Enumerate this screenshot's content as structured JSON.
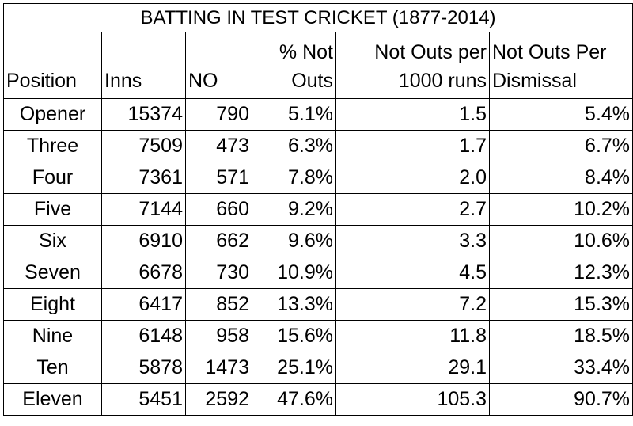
{
  "title": "BATTING IN TEST CRICKET (1877-2014)",
  "headers": {
    "position": "Position",
    "inns": "Inns",
    "no": "NO",
    "pct_not_outs_line1": "% Not",
    "pct_not_outs_line2": "Outs",
    "not_outs_per_1000_line1": "Not Outs per",
    "not_outs_per_1000_line2": "1000 runs",
    "not_outs_per_dismissal_line1": "Not Outs Per",
    "not_outs_per_dismissal_line2": "Dismissal"
  },
  "rows": [
    {
      "position": "Opener",
      "inns": "15374",
      "no": "790",
      "pct": "5.1%",
      "per1000": "1.5",
      "perdis": "5.4%"
    },
    {
      "position": "Three",
      "inns": "7509",
      "no": "473",
      "pct": "6.3%",
      "per1000": "1.7",
      "perdis": "6.7%"
    },
    {
      "position": "Four",
      "inns": "7361",
      "no": "571",
      "pct": "7.8%",
      "per1000": "2.0",
      "perdis": "8.4%"
    },
    {
      "position": "Five",
      "inns": "7144",
      "no": "660",
      "pct": "9.2%",
      "per1000": "2.7",
      "perdis": "10.2%"
    },
    {
      "position": "Six",
      "inns": "6910",
      "no": "662",
      "pct": "9.6%",
      "per1000": "3.3",
      "perdis": "10.6%"
    },
    {
      "position": "Seven",
      "inns": "6678",
      "no": "730",
      "pct": "10.9%",
      "per1000": "4.5",
      "perdis": "12.3%"
    },
    {
      "position": "Eight",
      "inns": "6417",
      "no": "852",
      "pct": "13.3%",
      "per1000": "7.2",
      "perdis": "15.3%"
    },
    {
      "position": "Nine",
      "inns": "6148",
      "no": "958",
      "pct": "15.6%",
      "per1000": "11.8",
      "perdis": "18.5%"
    },
    {
      "position": "Ten",
      "inns": "5878",
      "no": "1473",
      "pct": "25.1%",
      "per1000": "29.1",
      "perdis": "33.4%"
    },
    {
      "position": "Eleven",
      "inns": "5451",
      "no": "2592",
      "pct": "47.6%",
      "per1000": "105.3",
      "perdis": "90.7%"
    }
  ]
}
